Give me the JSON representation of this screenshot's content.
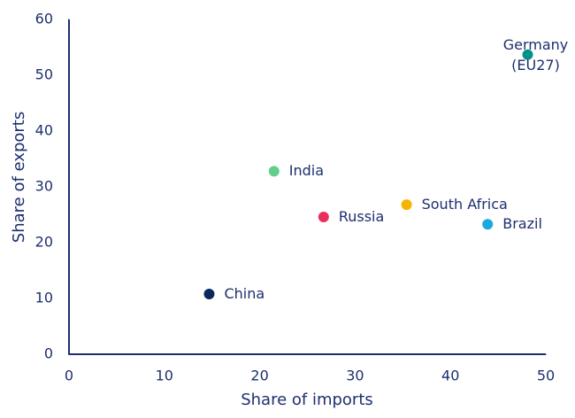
{
  "chart_data": {
    "type": "scatter",
    "x_label": "Share of imports",
    "y_label": "Share of exports",
    "xlim": [
      0,
      50
    ],
    "xticks": [
      0,
      10,
      20,
      30,
      40,
      50
    ],
    "ylim": [
      0,
      60
    ],
    "yticks": [
      0,
      10,
      20,
      30,
      40,
      50,
      60
    ],
    "points": [
      {
        "name": "Germany (EU27)",
        "x": 48.1,
        "y": 53.7,
        "color": "#00918a"
      },
      {
        "name": "India",
        "x": 21.5,
        "y": 32.8,
        "color": "#5fcf8a"
      },
      {
        "name": "Russia",
        "x": 26.7,
        "y": 24.6,
        "color": "#e8305a"
      },
      {
        "name": "South Africa",
        "x": 35.4,
        "y": 26.8,
        "color": "#f5b400"
      },
      {
        "name": "Brazil",
        "x": 43.9,
        "y": 23.3,
        "color": "#1aa8e0"
      },
      {
        "name": "China",
        "x": 14.7,
        "y": 10.8,
        "color": "#0a2a5e"
      }
    ]
  }
}
